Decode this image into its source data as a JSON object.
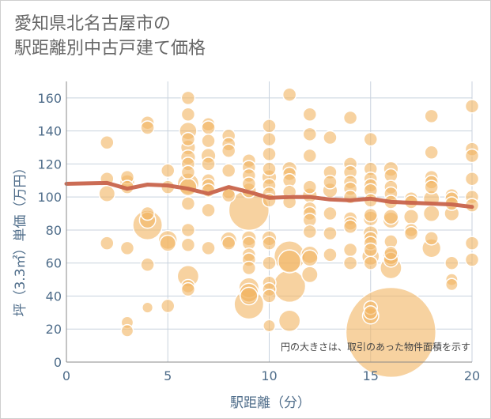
{
  "chart_data": {
    "type": "scatter",
    "title": [
      "愛知県北名古屋市の",
      "駅距離別中古戸建て価格"
    ],
    "xlabel": "駅距離（分）",
    "ylabel": "坪（3.3㎡）単価（万円）",
    "xlim": [
      0,
      20
    ],
    "ylim": [
      0,
      170
    ],
    "xticks": [
      0,
      5,
      10,
      15,
      20
    ],
    "yticks": [
      0,
      20,
      40,
      60,
      80,
      100,
      120,
      140,
      160
    ],
    "grid": true,
    "annotation": "円の大きさは、取引のあった物件面積を示す",
    "colors": {
      "bubble_fill": "#f2b766",
      "bubble_stroke": "#ffffff",
      "trend": "#c8644c",
      "grid": "#c8d2de",
      "axis_text": "#4f6d8a"
    },
    "trend_line": {
      "x": [
        0,
        2,
        3,
        4,
        5,
        6,
        7,
        8,
        9,
        10,
        11,
        12,
        13,
        14,
        15,
        16,
        17,
        18,
        19,
        20
      ],
      "y": [
        108,
        108.5,
        105,
        107.5,
        107,
        105,
        102,
        106,
        103,
        99.5,
        100,
        100,
        98.5,
        98,
        99,
        97,
        96.5,
        96,
        95.5,
        94
      ]
    },
    "points": [
      {
        "x": 2,
        "y": 133,
        "size": 1
      },
      {
        "x": 2,
        "y": 111,
        "size": 1
      },
      {
        "x": 2,
        "y": 102,
        "size": 1.2
      },
      {
        "x": 2,
        "y": 72,
        "size": 1
      },
      {
        "x": 3,
        "y": 112,
        "size": 1
      },
      {
        "x": 3,
        "y": 109,
        "size": 1.1
      },
      {
        "x": 3,
        "y": 106,
        "size": 1
      },
      {
        "x": 3,
        "y": 69,
        "size": 1
      },
      {
        "x": 3,
        "y": 24,
        "size": 0.9
      },
      {
        "x": 3,
        "y": 19,
        "size": 0.9
      },
      {
        "x": 4,
        "y": 145,
        "size": 1
      },
      {
        "x": 4,
        "y": 142,
        "size": 1
      },
      {
        "x": 4,
        "y": 90,
        "size": 1
      },
      {
        "x": 4,
        "y": 86,
        "size": 1.2
      },
      {
        "x": 4,
        "y": 83,
        "size": 2.2
      },
      {
        "x": 4,
        "y": 59,
        "size": 1
      },
      {
        "x": 4,
        "y": 33,
        "size": 0.8
      },
      {
        "x": 5,
        "y": 116,
        "size": 1
      },
      {
        "x": 5,
        "y": 106,
        "size": 1
      },
      {
        "x": 5,
        "y": 74,
        "size": 1.4
      },
      {
        "x": 5,
        "y": 72,
        "size": 1.2
      },
      {
        "x": 5,
        "y": 34,
        "size": 1
      },
      {
        "x": 6,
        "y": 160,
        "size": 1
      },
      {
        "x": 6,
        "y": 150,
        "size": 1
      },
      {
        "x": 6,
        "y": 140,
        "size": 1.3
      },
      {
        "x": 6,
        "y": 135,
        "size": 1
      },
      {
        "x": 6,
        "y": 130,
        "size": 1.1
      },
      {
        "x": 6,
        "y": 124,
        "size": 1.1
      },
      {
        "x": 6,
        "y": 120,
        "size": 1
      },
      {
        "x": 6,
        "y": 115,
        "size": 1
      },
      {
        "x": 6,
        "y": 108,
        "size": 1.6
      },
      {
        "x": 6,
        "y": 106,
        "size": 1.3
      },
      {
        "x": 6,
        "y": 96,
        "size": 1
      },
      {
        "x": 6,
        "y": 80,
        "size": 1
      },
      {
        "x": 6,
        "y": 71,
        "size": 1
      },
      {
        "x": 6,
        "y": 52,
        "size": 1.6
      },
      {
        "x": 6,
        "y": 46,
        "size": 1
      },
      {
        "x": 6,
        "y": 44,
        "size": 1
      },
      {
        "x": 7,
        "y": 144,
        "size": 1
      },
      {
        "x": 7,
        "y": 142,
        "size": 1
      },
      {
        "x": 7,
        "y": 134,
        "size": 1
      },
      {
        "x": 7,
        "y": 125,
        "size": 1.1
      },
      {
        "x": 7,
        "y": 120,
        "size": 1
      },
      {
        "x": 7,
        "y": 110,
        "size": 1
      },
      {
        "x": 7,
        "y": 107,
        "size": 1
      },
      {
        "x": 7,
        "y": 104,
        "size": 1
      },
      {
        "x": 7,
        "y": 92,
        "size": 1
      },
      {
        "x": 7,
        "y": 69,
        "size": 1
      },
      {
        "x": 8,
        "y": 137,
        "size": 1
      },
      {
        "x": 8,
        "y": 132,
        "size": 1
      },
      {
        "x": 8,
        "y": 128,
        "size": 1
      },
      {
        "x": 8,
        "y": 116,
        "size": 1
      },
      {
        "x": 8,
        "y": 103,
        "size": 1
      },
      {
        "x": 8,
        "y": 101,
        "size": 1
      },
      {
        "x": 8,
        "y": 74,
        "size": 1.2
      },
      {
        "x": 8,
        "y": 72,
        "size": 1
      },
      {
        "x": 9,
        "y": 122,
        "size": 1
      },
      {
        "x": 9,
        "y": 118,
        "size": 1
      },
      {
        "x": 9,
        "y": 113,
        "size": 1
      },
      {
        "x": 9,
        "y": 108,
        "size": 1
      },
      {
        "x": 9,
        "y": 104,
        "size": 1.1
      },
      {
        "x": 9,
        "y": 92,
        "size": 3
      },
      {
        "x": 9,
        "y": 75,
        "size": 1.1
      },
      {
        "x": 9,
        "y": 72,
        "size": 1
      },
      {
        "x": 9,
        "y": 65,
        "size": 1
      },
      {
        "x": 9,
        "y": 62,
        "size": 1
      },
      {
        "x": 9,
        "y": 57,
        "size": 1
      },
      {
        "x": 9,
        "y": 45,
        "size": 1.5
      },
      {
        "x": 9,
        "y": 42,
        "size": 1.4
      },
      {
        "x": 9,
        "y": 40,
        "size": 1.3
      },
      {
        "x": 9,
        "y": 35,
        "size": 2.2
      },
      {
        "x": 10,
        "y": 143,
        "size": 1
      },
      {
        "x": 10,
        "y": 135,
        "size": 1
      },
      {
        "x": 10,
        "y": 126,
        "size": 1
      },
      {
        "x": 10,
        "y": 117,
        "size": 1
      },
      {
        "x": 10,
        "y": 112,
        "size": 1.1
      },
      {
        "x": 10,
        "y": 107,
        "size": 1
      },
      {
        "x": 10,
        "y": 102,
        "size": 1
      },
      {
        "x": 10,
        "y": 98,
        "size": 1
      },
      {
        "x": 10,
        "y": 75,
        "size": 1.1
      },
      {
        "x": 10,
        "y": 72,
        "size": 1
      },
      {
        "x": 10,
        "y": 60,
        "size": 1
      },
      {
        "x": 10,
        "y": 48,
        "size": 1
      },
      {
        "x": 10,
        "y": 44,
        "size": 1
      },
      {
        "x": 10,
        "y": 40,
        "size": 1
      },
      {
        "x": 10,
        "y": 22,
        "size": 0.9
      },
      {
        "x": 11,
        "y": 162,
        "size": 1
      },
      {
        "x": 11,
        "y": 117,
        "size": 1.1
      },
      {
        "x": 11,
        "y": 114,
        "size": 1
      },
      {
        "x": 11,
        "y": 110,
        "size": 1
      },
      {
        "x": 11,
        "y": 103,
        "size": 1
      },
      {
        "x": 11,
        "y": 97,
        "size": 1
      },
      {
        "x": 11,
        "y": 64,
        "size": 2.3
      },
      {
        "x": 11,
        "y": 61,
        "size": 1.7
      },
      {
        "x": 11,
        "y": 46,
        "size": 2.4
      },
      {
        "x": 11,
        "y": 25,
        "size": 1.6
      },
      {
        "x": 12,
        "y": 150,
        "size": 1
      },
      {
        "x": 12,
        "y": 138,
        "size": 1
      },
      {
        "x": 12,
        "y": 125,
        "size": 1
      },
      {
        "x": 12,
        "y": 106,
        "size": 1
      },
      {
        "x": 12,
        "y": 101,
        "size": 1.1
      },
      {
        "x": 12,
        "y": 93,
        "size": 1
      },
      {
        "x": 12,
        "y": 90,
        "size": 1
      },
      {
        "x": 12,
        "y": 86,
        "size": 1
      },
      {
        "x": 12,
        "y": 79,
        "size": 1
      },
      {
        "x": 12,
        "y": 65,
        "size": 1.3
      },
      {
        "x": 12,
        "y": 63,
        "size": 1.2
      },
      {
        "x": 12,
        "y": 53,
        "size": 1.2
      },
      {
        "x": 13,
        "y": 136,
        "size": 1
      },
      {
        "x": 13,
        "y": 115,
        "size": 1
      },
      {
        "x": 13,
        "y": 109,
        "size": 1
      },
      {
        "x": 13,
        "y": 104,
        "size": 1.1
      },
      {
        "x": 13,
        "y": 90,
        "size": 1
      },
      {
        "x": 13,
        "y": 78,
        "size": 1
      },
      {
        "x": 13,
        "y": 65,
        "size": 1
      },
      {
        "x": 14,
        "y": 148,
        "size": 1
      },
      {
        "x": 14,
        "y": 120,
        "size": 1
      },
      {
        "x": 14,
        "y": 115,
        "size": 1
      },
      {
        "x": 14,
        "y": 109,
        "size": 1
      },
      {
        "x": 14,
        "y": 105,
        "size": 1
      },
      {
        "x": 14,
        "y": 100,
        "size": 1
      },
      {
        "x": 14,
        "y": 87,
        "size": 1
      },
      {
        "x": 14,
        "y": 84,
        "size": 1
      },
      {
        "x": 14,
        "y": 82,
        "size": 1
      },
      {
        "x": 14,
        "y": 68,
        "size": 1
      },
      {
        "x": 14,
        "y": 60,
        "size": 1
      },
      {
        "x": 15,
        "y": 135,
        "size": 1
      },
      {
        "x": 15,
        "y": 117,
        "size": 1
      },
      {
        "x": 15,
        "y": 111,
        "size": 1
      },
      {
        "x": 15,
        "y": 107,
        "size": 1
      },
      {
        "x": 15,
        "y": 104,
        "size": 1
      },
      {
        "x": 15,
        "y": 98,
        "size": 1
      },
      {
        "x": 15,
        "y": 89,
        "size": 1
      },
      {
        "x": 15,
        "y": 87,
        "size": 1.1
      },
      {
        "x": 15,
        "y": 78,
        "size": 1.1
      },
      {
        "x": 15,
        "y": 75,
        "size": 1
      },
      {
        "x": 15,
        "y": 72,
        "size": 1
      },
      {
        "x": 15,
        "y": 68,
        "size": 1
      },
      {
        "x": 15,
        "y": 64,
        "size": 1.3
      },
      {
        "x": 15,
        "y": 60,
        "size": 1
      },
      {
        "x": 15,
        "y": 33,
        "size": 1
      },
      {
        "x": 15,
        "y": 30,
        "size": 1
      },
      {
        "x": 15,
        "y": 28,
        "size": 1.2
      },
      {
        "x": 16,
        "y": 117,
        "size": 1.1
      },
      {
        "x": 16,
        "y": 113,
        "size": 1
      },
      {
        "x": 16,
        "y": 106,
        "size": 1
      },
      {
        "x": 16,
        "y": 102,
        "size": 1
      },
      {
        "x": 16,
        "y": 97,
        "size": 1
      },
      {
        "x": 16,
        "y": 88,
        "size": 1.1
      },
      {
        "x": 16,
        "y": 86,
        "size": 1.2
      },
      {
        "x": 16,
        "y": 73,
        "size": 1
      },
      {
        "x": 16,
        "y": 66,
        "size": 1
      },
      {
        "x": 16,
        "y": 64,
        "size": 1.2
      },
      {
        "x": 16,
        "y": 62,
        "size": 1.1
      },
      {
        "x": 16,
        "y": 57,
        "size": 1.6
      },
      {
        "x": 16,
        "y": 18,
        "size": 6.7
      },
      {
        "x": 17,
        "y": 99,
        "size": 1
      },
      {
        "x": 17,
        "y": 97,
        "size": 1
      },
      {
        "x": 17,
        "y": 88,
        "size": 1.1
      },
      {
        "x": 17,
        "y": 80,
        "size": 1
      },
      {
        "x": 17,
        "y": 78,
        "size": 1
      },
      {
        "x": 18,
        "y": 149,
        "size": 1
      },
      {
        "x": 18,
        "y": 127,
        "size": 1
      },
      {
        "x": 18,
        "y": 112,
        "size": 1
      },
      {
        "x": 18,
        "y": 109,
        "size": 1
      },
      {
        "x": 18,
        "y": 106,
        "size": 1
      },
      {
        "x": 18,
        "y": 99,
        "size": 1.2
      },
      {
        "x": 18,
        "y": 90,
        "size": 1.2
      },
      {
        "x": 18,
        "y": 75,
        "size": 1
      },
      {
        "x": 18,
        "y": 69,
        "size": 1.4
      },
      {
        "x": 19,
        "y": 101,
        "size": 1
      },
      {
        "x": 19,
        "y": 99,
        "size": 1
      },
      {
        "x": 19,
        "y": 96,
        "size": 1
      },
      {
        "x": 19,
        "y": 90,
        "size": 1.1
      },
      {
        "x": 19,
        "y": 60,
        "size": 1
      },
      {
        "x": 19,
        "y": 50,
        "size": 0.9
      },
      {
        "x": 19,
        "y": 47,
        "size": 0.9
      },
      {
        "x": 20,
        "y": 155,
        "size": 1
      },
      {
        "x": 20,
        "y": 129,
        "size": 1
      },
      {
        "x": 20,
        "y": 125,
        "size": 1
      },
      {
        "x": 20,
        "y": 111,
        "size": 1
      },
      {
        "x": 20,
        "y": 100,
        "size": 1
      },
      {
        "x": 20,
        "y": 95,
        "size": 1
      },
      {
        "x": 20,
        "y": 72,
        "size": 1
      },
      {
        "x": 20,
        "y": 62,
        "size": 1
      }
    ]
  }
}
